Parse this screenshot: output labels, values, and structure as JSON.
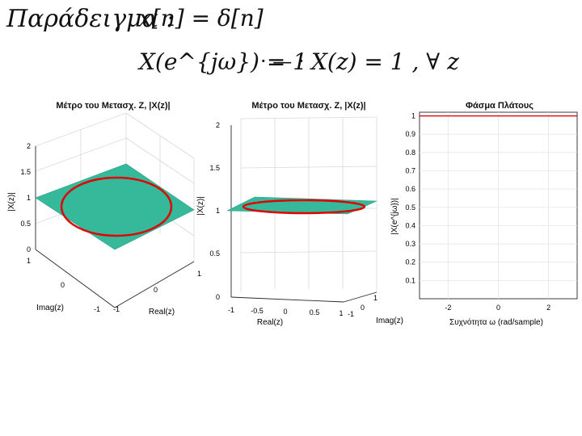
{
  "notes": {
    "title": "Παράδειγμα :",
    "eq1": "x[n] = δ[n]",
    "eq2": "X(e^{jω}) = 1",
    "dots": "· — ·",
    "eq3": "X(z) = 1 , ∀ z"
  },
  "colors": {
    "surface": "#36b99a",
    "unit_circle": "#e00000",
    "amplitude_line": "#e00000",
    "grid": "#e6e6e6",
    "axis": "#262626"
  },
  "chart_data": [
    {
      "type": "surface3d",
      "title": "Μέτρο του Μετασχ. Z, |X(z)|",
      "xlabel": "Real(z)",
      "ylabel": "Imag(z)",
      "zlabel": "|X(z)|",
      "x_ticks": [
        "-1",
        "0",
        "1"
      ],
      "y_ticks": [
        "-1",
        "0",
        "1"
      ],
      "z_ticks": [
        "0",
        "0.5",
        "1",
        "1.5",
        "2"
      ],
      "xlim": [
        -1,
        1
      ],
      "ylim": [
        -1,
        1
      ],
      "zlim": [
        0,
        2
      ],
      "surface_value": 1,
      "unit_circle_radius": 1
    },
    {
      "type": "surface3d",
      "title": "Μέτρο του Μετασχ. Z, |X(z)|",
      "xlabel": "Real(z)",
      "ylabel": "Imag(z)",
      "zlabel": "|X(z)|",
      "x_ticks": [
        "-1",
        "-0.5",
        "0",
        "0.5",
        "1"
      ],
      "y_ticks": [
        "-1",
        "0",
        "1"
      ],
      "z_ticks": [
        "0",
        "0.5",
        "1",
        "1.5",
        "2"
      ],
      "xlim": [
        -1,
        1
      ],
      "ylim": [
        -1,
        1
      ],
      "zlim": [
        0,
        2
      ],
      "surface_value": 1,
      "unit_circle_radius": 1
    },
    {
      "type": "line",
      "title": "Φάσμα Πλάτους",
      "xlabel": "Συχνότητα ω (rad/sample)",
      "ylabel": "|X(e^{jω})|",
      "x_ticks": [
        "-2",
        "0",
        "2"
      ],
      "y_ticks": [
        "0.1",
        "0.2",
        "0.3",
        "0.4",
        "0.5",
        "0.6",
        "0.7",
        "0.8",
        "0.9",
        "1"
      ],
      "xlim": [
        -3.1416,
        3.1416
      ],
      "ylim": [
        0,
        1.02
      ],
      "grid": true,
      "x": [
        -3.1416,
        3.1416
      ],
      "y": [
        1,
        1
      ]
    }
  ]
}
